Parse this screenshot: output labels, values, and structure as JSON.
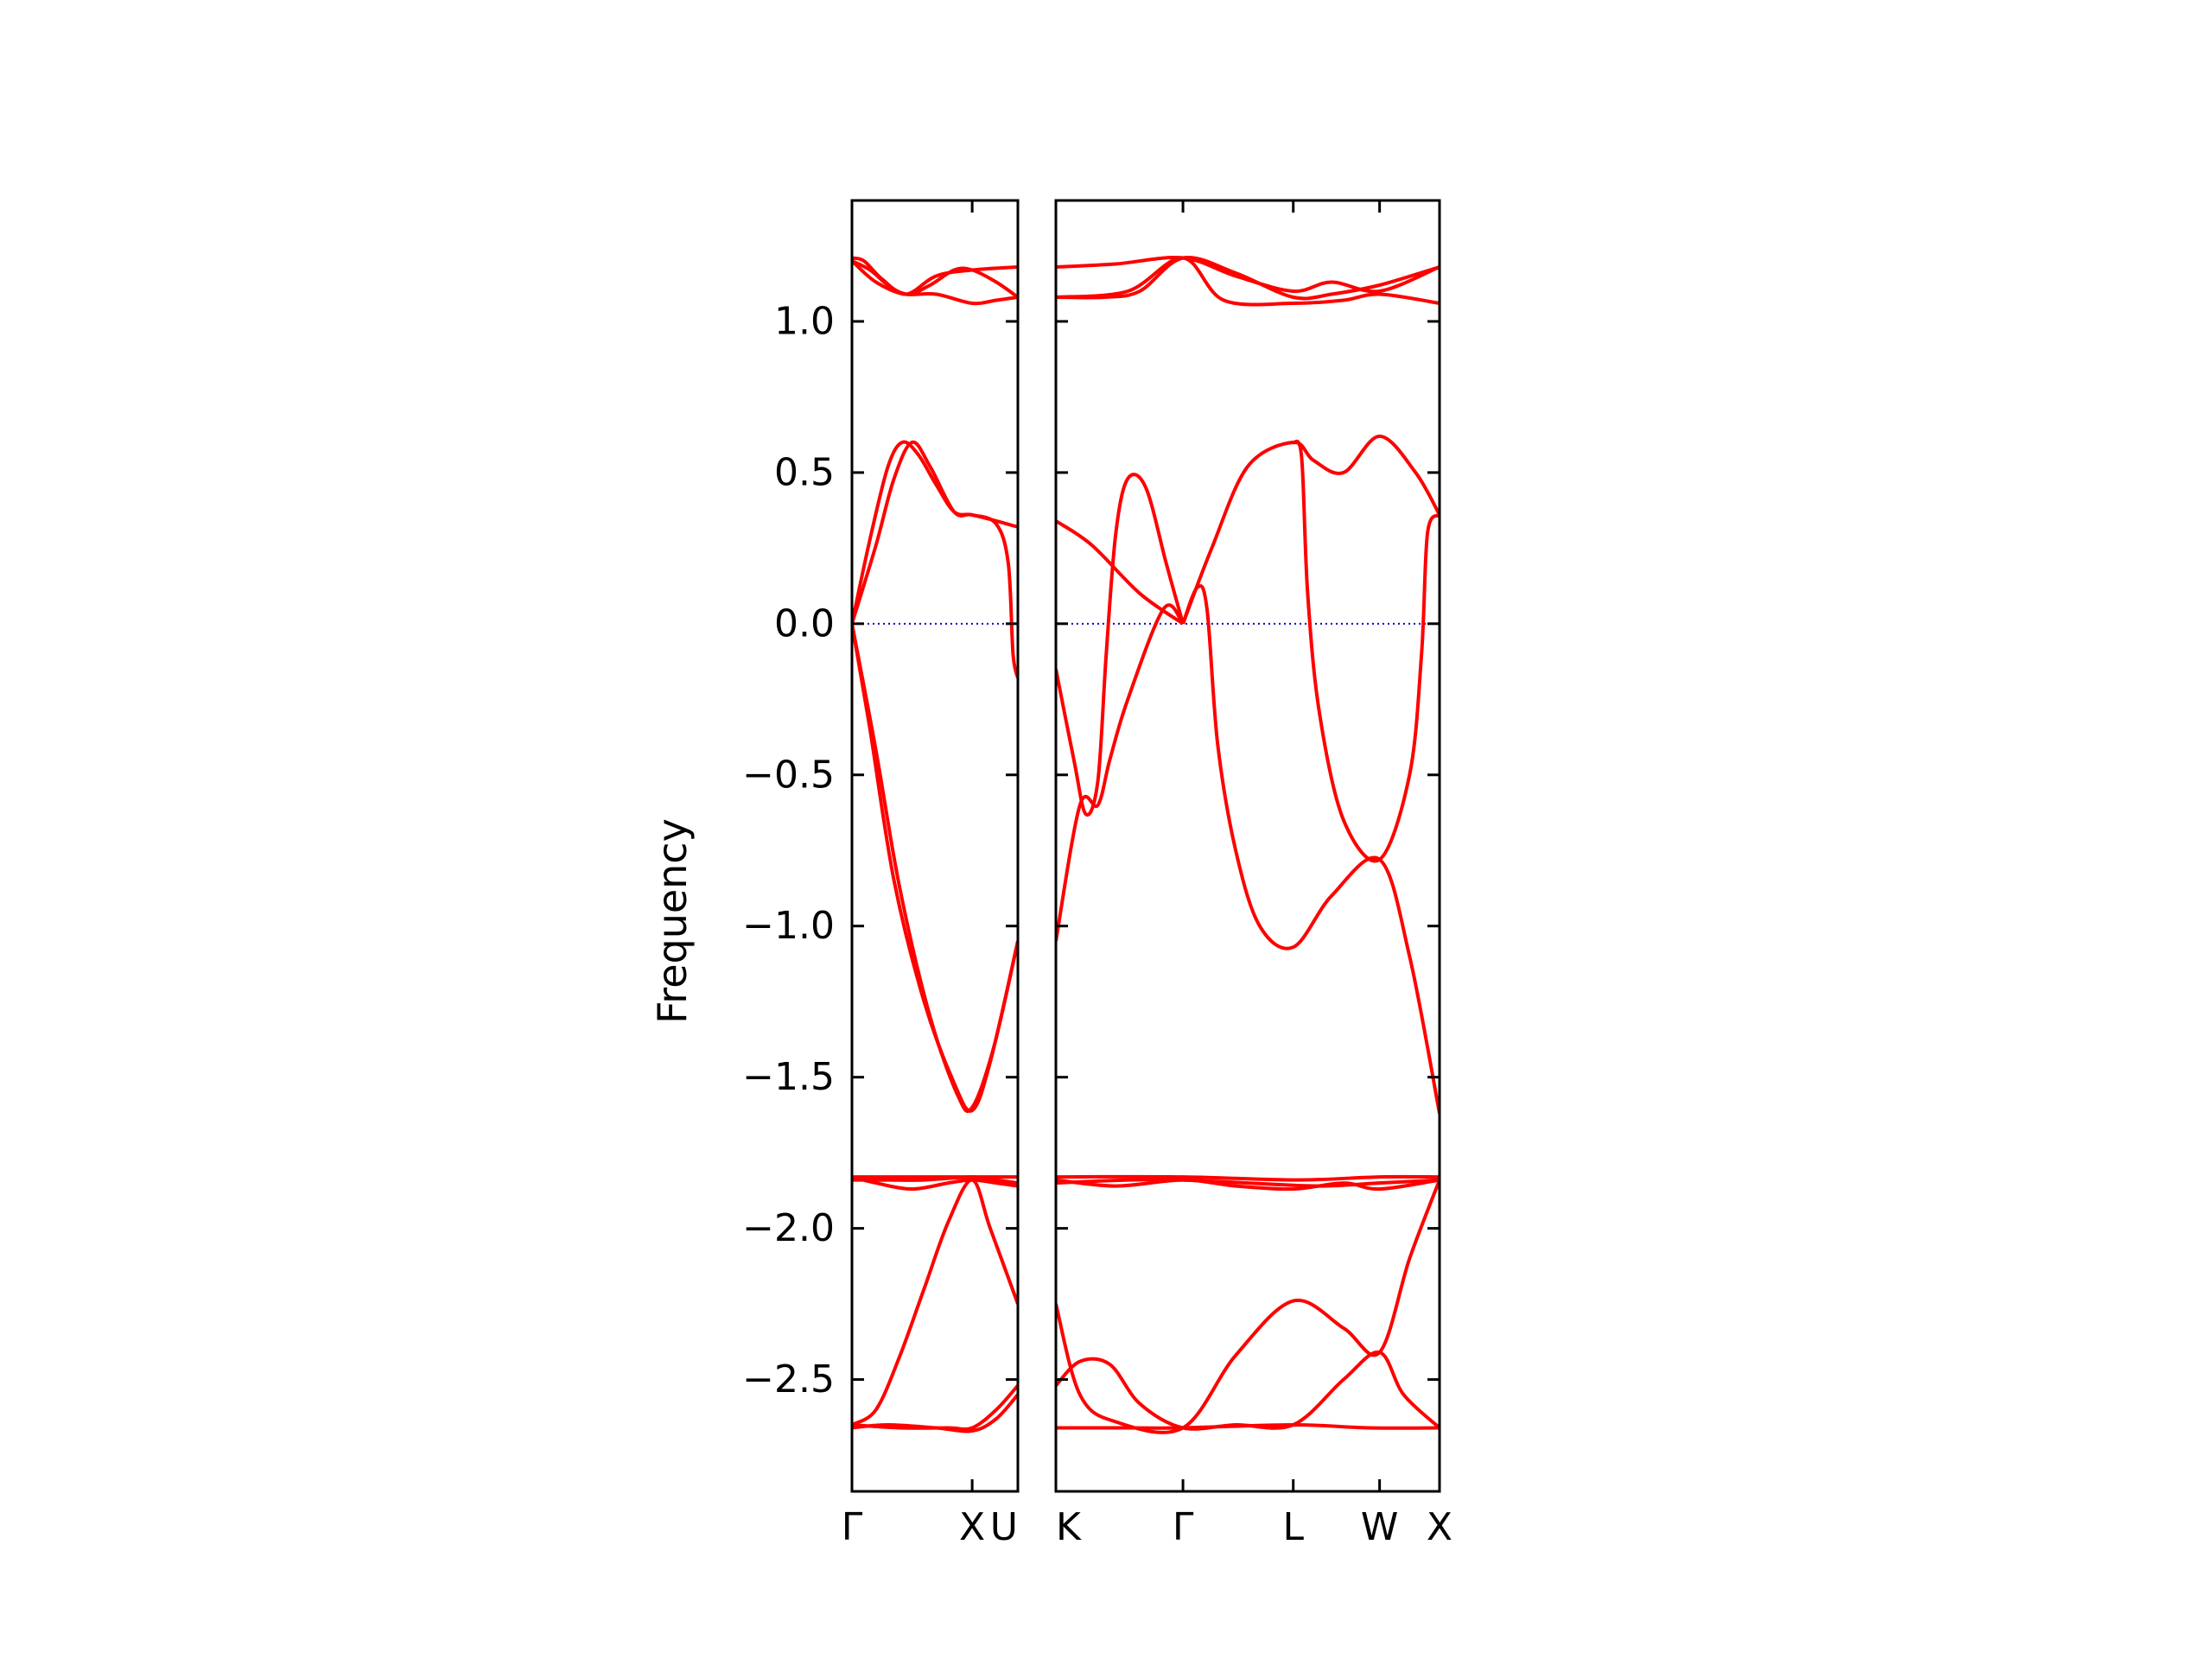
{
  "chart_data": {
    "type": "line",
    "title": "",
    "ylabel": "Frequency",
    "ylim": [
      -2.87,
      1.4
    ],
    "yticks": [
      {
        "value": 1.0,
        "label": "1.0"
      },
      {
        "value": 0.5,
        "label": "0.5"
      },
      {
        "value": 0.0,
        "label": "0.0"
      },
      {
        "value": -0.5,
        "label": "−0.5"
      },
      {
        "value": -1.0,
        "label": "−1.0"
      },
      {
        "value": -1.5,
        "label": "−1.5"
      },
      {
        "value": -2.0,
        "label": "−2.0"
      },
      {
        "value": -2.5,
        "label": "−2.5"
      }
    ],
    "colors": {
      "band": "#ff0000",
      "zero_line": "#0000cc",
      "axes": "#000000"
    },
    "zero_line": {
      "y": 0.0,
      "style": "dotted"
    },
    "panels": [
      {
        "xlim": [
          0,
          1.38
        ],
        "xticks": [
          {
            "x": 0,
            "label": "Γ"
          },
          {
            "x": 1.0,
            "label": "X"
          },
          {
            "x": 1.38,
            "label": "U"
          }
        ],
        "bands": [
          [
            [
              0,
              1.21
            ],
            [
              0.1,
              1.2
            ],
            [
              0.25,
              1.14
            ],
            [
              0.45,
              1.09
            ],
            [
              0.7,
              1.15
            ],
            [
              1.0,
              1.17
            ],
            [
              1.38,
              1.18
            ]
          ],
          [
            [
              0,
              1.2
            ],
            [
              0.15,
              1.17
            ],
            [
              0.3,
              1.12
            ],
            [
              0.45,
              1.09
            ],
            [
              0.7,
              1.09
            ],
            [
              1.0,
              1.06
            ],
            [
              1.2,
              1.07
            ],
            [
              1.38,
              1.08
            ]
          ],
          [
            [
              0,
              1.2
            ],
            [
              0.2,
              1.13
            ],
            [
              0.45,
              1.09
            ],
            [
              0.65,
              1.12
            ],
            [
              0.85,
              1.17
            ],
            [
              1.0,
              1.17
            ],
            [
              1.2,
              1.13
            ],
            [
              1.38,
              1.08
            ]
          ],
          [
            [
              0,
              0.0
            ],
            [
              0.15,
              0.28
            ],
            [
              0.3,
              0.52
            ],
            [
              0.42,
              0.6
            ],
            [
              0.55,
              0.56
            ],
            [
              0.7,
              0.46
            ],
            [
              0.85,
              0.37
            ],
            [
              1.0,
              0.36
            ],
            [
              1.2,
              0.34
            ],
            [
              1.38,
              0.32
            ]
          ],
          [
            [
              0,
              0.0
            ],
            [
              0.2,
              0.26
            ],
            [
              0.35,
              0.48
            ],
            [
              0.5,
              0.6
            ],
            [
              0.65,
              0.52
            ],
            [
              0.85,
              0.37
            ],
            [
              1.0,
              0.36
            ],
            [
              1.2,
              0.33
            ],
            [
              1.3,
              0.2
            ],
            [
              1.34,
              -0.1
            ],
            [
              1.38,
              -0.18
            ]
          ],
          [
            [
              0,
              0.0
            ],
            [
              0.15,
              -0.35
            ],
            [
              0.35,
              -0.85
            ],
            [
              0.6,
              -1.25
            ],
            [
              0.85,
              -1.52
            ],
            [
              1.0,
              -1.61
            ],
            [
              1.15,
              -1.45
            ],
            [
              1.38,
              -1.05
            ]
          ],
          [
            [
              0,
              0.0
            ],
            [
              0.2,
              -0.42
            ],
            [
              0.4,
              -0.88
            ],
            [
              0.65,
              -1.3
            ],
            [
              0.88,
              -1.56
            ],
            [
              1.0,
              -1.6
            ],
            [
              1.18,
              -1.4
            ],
            [
              1.38,
              -1.05
            ]
          ],
          [
            [
              0,
              -1.83
            ],
            [
              0.5,
              -1.83
            ],
            [
              1.0,
              -1.83
            ],
            [
              1.38,
              -1.83
            ]
          ],
          [
            [
              0,
              -1.83
            ],
            [
              0.2,
              -1.85
            ],
            [
              0.5,
              -1.87
            ],
            [
              0.8,
              -1.85
            ],
            [
              1.0,
              -1.84
            ],
            [
              1.2,
              -1.85
            ],
            [
              1.38,
              -1.86
            ]
          ],
          [
            [
              0,
              -1.84
            ],
            [
              0.3,
              -1.84
            ],
            [
              0.6,
              -1.84
            ],
            [
              1.0,
              -1.83
            ],
            [
              1.2,
              -1.84
            ],
            [
              1.38,
              -1.85
            ]
          ],
          [
            [
              0,
              -2.65
            ],
            [
              0.2,
              -2.6
            ],
            [
              0.4,
              -2.42
            ],
            [
              0.6,
              -2.2
            ],
            [
              0.8,
              -1.98
            ],
            [
              1.0,
              -1.84
            ],
            [
              1.15,
              -2.0
            ],
            [
              1.38,
              -2.25
            ]
          ],
          [
            [
              0,
              -2.66
            ],
            [
              0.3,
              -2.65
            ],
            [
              0.7,
              -2.66
            ],
            [
              1.0,
              -2.67
            ],
            [
              1.2,
              -2.63
            ],
            [
              1.38,
              -2.55
            ]
          ],
          [
            [
              0,
              -2.65
            ],
            [
              0.4,
              -2.66
            ],
            [
              0.8,
              -2.66
            ],
            [
              1.0,
              -2.66
            ],
            [
              1.2,
              -2.6
            ],
            [
              1.38,
              -2.52
            ]
          ]
        ]
      },
      {
        "xlim": [
          0,
          3.2
        ],
        "xticks": [
          {
            "x": 0,
            "label": "K"
          },
          {
            "x": 1.06,
            "label": "Γ"
          },
          {
            "x": 1.98,
            "label": "L"
          },
          {
            "x": 2.7,
            "label": "W"
          },
          {
            "x": 3.2,
            "label": "X"
          }
        ],
        "bands": [
          [
            [
              0,
              1.18
            ],
            [
              0.5,
              1.19
            ],
            [
              1.06,
              1.21
            ],
            [
              1.5,
              1.15
            ],
            [
              1.98,
              1.1
            ],
            [
              2.3,
              1.13
            ],
            [
              2.7,
              1.1
            ],
            [
              3.2,
              1.18
            ]
          ],
          [
            [
              0,
              1.08
            ],
            [
              0.4,
              1.08
            ],
            [
              0.7,
              1.1
            ],
            [
              1.06,
              1.21
            ],
            [
              1.5,
              1.16
            ],
            [
              1.98,
              1.08
            ],
            [
              2.3,
              1.09
            ],
            [
              2.7,
              1.12
            ],
            [
              3.2,
              1.18
            ]
          ],
          [
            [
              0,
              1.08
            ],
            [
              0.6,
              1.1
            ],
            [
              1.06,
              1.21
            ],
            [
              1.4,
              1.07
            ],
            [
              1.98,
              1.06
            ],
            [
              2.4,
              1.07
            ],
            [
              2.7,
              1.09
            ],
            [
              3.2,
              1.06
            ]
          ],
          [
            [
              0,
              -0.15
            ],
            [
              0.15,
              -0.45
            ],
            [
              0.25,
              -0.63
            ],
            [
              0.35,
              -0.52
            ],
            [
              0.42,
              -0.1
            ],
            [
              0.5,
              0.3
            ],
            [
              0.6,
              0.48
            ],
            [
              0.75,
              0.45
            ],
            [
              0.92,
              0.2
            ],
            [
              1.06,
              0.0
            ]
          ],
          [
            [
              0,
              -1.05
            ],
            [
              0.2,
              -0.6
            ],
            [
              0.35,
              -0.6
            ],
            [
              0.45,
              -0.45
            ],
            [
              0.6,
              -0.25
            ],
            [
              0.9,
              0.05
            ],
            [
              1.06,
              0.0
            ]
          ],
          [
            [
              0,
              0.34
            ],
            [
              0.3,
              0.26
            ],
            [
              0.7,
              0.1
            ],
            [
              1.06,
              0.0
            ]
          ],
          [
            [
              1.06,
              0.0
            ],
            [
              1.3,
              0.25
            ],
            [
              1.6,
              0.52
            ],
            [
              1.98,
              0.6
            ],
            [
              2.15,
              0.54
            ],
            [
              2.4,
              0.5
            ],
            [
              2.7,
              0.62
            ],
            [
              3.0,
              0.5
            ],
            [
              3.2,
              0.36
            ]
          ],
          [
            [
              1.06,
              0.0
            ],
            [
              1.18,
              0.12
            ],
            [
              1.26,
              0.05
            ],
            [
              1.35,
              -0.4
            ],
            [
              1.5,
              -0.75
            ],
            [
              1.7,
              -1.0
            ],
            [
              1.98,
              -1.07
            ],
            [
              2.3,
              -0.9
            ],
            [
              2.7,
              -0.78
            ],
            [
              2.95,
              -1.1
            ],
            [
              3.2,
              -1.62
            ]
          ],
          [
            [
              1.98,
              0.6
            ],
            [
              2.05,
              0.55
            ],
            [
              2.1,
              0.1
            ],
            [
              2.2,
              -0.3
            ],
            [
              2.4,
              -0.65
            ],
            [
              2.7,
              -0.78
            ],
            [
              2.95,
              -0.5
            ],
            [
              3.05,
              -0.1
            ],
            [
              3.1,
              0.3
            ],
            [
              3.2,
              0.36
            ]
          ],
          [
            [
              0,
              -1.83
            ],
            [
              1.06,
              -1.83
            ],
            [
              2.0,
              -1.84
            ],
            [
              2.7,
              -1.83
            ],
            [
              3.2,
              -1.83
            ]
          ],
          [
            [
              0,
              -1.84
            ],
            [
              0.5,
              -1.86
            ],
            [
              1.06,
              -1.84
            ],
            [
              1.5,
              -1.86
            ],
            [
              1.98,
              -1.87
            ],
            [
              2.4,
              -1.85
            ],
            [
              2.7,
              -1.87
            ],
            [
              3.2,
              -1.84
            ]
          ],
          [
            [
              0,
              -1.85
            ],
            [
              0.6,
              -1.84
            ],
            [
              1.06,
              -1.84
            ],
            [
              1.6,
              -1.85
            ],
            [
              2.2,
              -1.86
            ],
            [
              2.7,
              -1.85
            ],
            [
              3.2,
              -1.84
            ]
          ],
          [
            [
              0,
              -2.25
            ],
            [
              0.2,
              -2.55
            ],
            [
              0.5,
              -2.64
            ],
            [
              1.06,
              -2.66
            ],
            [
              1.5,
              -2.42
            ],
            [
              1.98,
              -2.24
            ],
            [
              2.4,
              -2.33
            ],
            [
              2.7,
              -2.41
            ],
            [
              2.95,
              -2.1
            ],
            [
              3.2,
              -1.84
            ]
          ],
          [
            [
              0,
              -2.52
            ],
            [
              0.2,
              -2.44
            ],
            [
              0.45,
              -2.45
            ],
            [
              0.7,
              -2.58
            ],
            [
              1.06,
              -2.66
            ],
            [
              1.5,
              -2.65
            ],
            [
              1.98,
              -2.65
            ],
            [
              2.4,
              -2.5
            ],
            [
              2.7,
              -2.41
            ],
            [
              2.9,
              -2.55
            ],
            [
              3.2,
              -2.66
            ]
          ],
          [
            [
              0,
              -2.66
            ],
            [
              0.6,
              -2.66
            ],
            [
              1.06,
              -2.66
            ],
            [
              1.98,
              -2.65
            ],
            [
              2.6,
              -2.66
            ],
            [
              3.2,
              -2.66
            ]
          ]
        ]
      }
    ]
  }
}
